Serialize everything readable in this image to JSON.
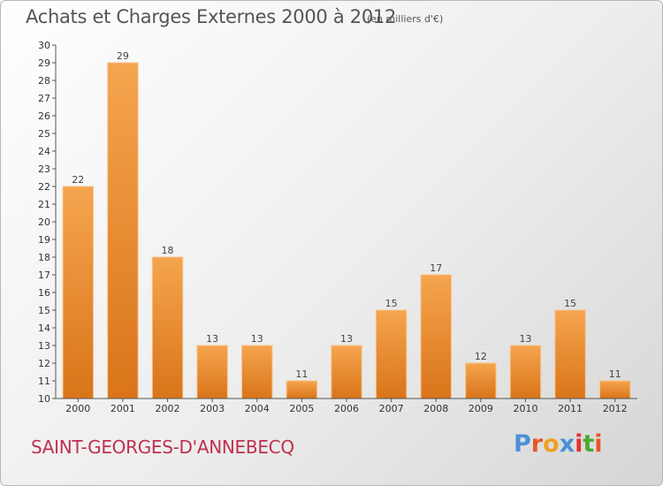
{
  "header": {
    "title": "Achats et Charges Externes 2000 à 2012",
    "subtitle": "(en milliers d'€)"
  },
  "footer": {
    "commune": "SAINT-GEORGES-D'ANNEBECQ",
    "logo_text": "Proxiti",
    "logo_colors": [
      "#4a90d9",
      "#e8562a",
      "#f0a020",
      "#4a90d9",
      "#e83030",
      "#4aaa30",
      "#e8562a"
    ]
  },
  "chart_data": {
    "type": "bar",
    "title": "Achats et Charges Externes 2000 à 2012",
    "subtitle": "(en milliers d'€)",
    "xlabel": "",
    "ylabel": "",
    "categories": [
      "2000",
      "2001",
      "2002",
      "2003",
      "2004",
      "2005",
      "2006",
      "2007",
      "2008",
      "2009",
      "2010",
      "2011",
      "2012"
    ],
    "values": [
      22,
      29,
      18,
      13,
      13,
      11,
      13,
      15,
      17,
      12,
      13,
      15,
      11
    ],
    "ylim": [
      10,
      30
    ],
    "yticks": [
      10,
      11,
      12,
      13,
      14,
      15,
      16,
      17,
      18,
      19,
      20,
      21,
      22,
      23,
      24,
      25,
      26,
      27,
      28,
      29,
      30
    ],
    "grid": false,
    "bar_color_top": "#f5a54e",
    "bar_color_bottom": "#d9761c"
  }
}
